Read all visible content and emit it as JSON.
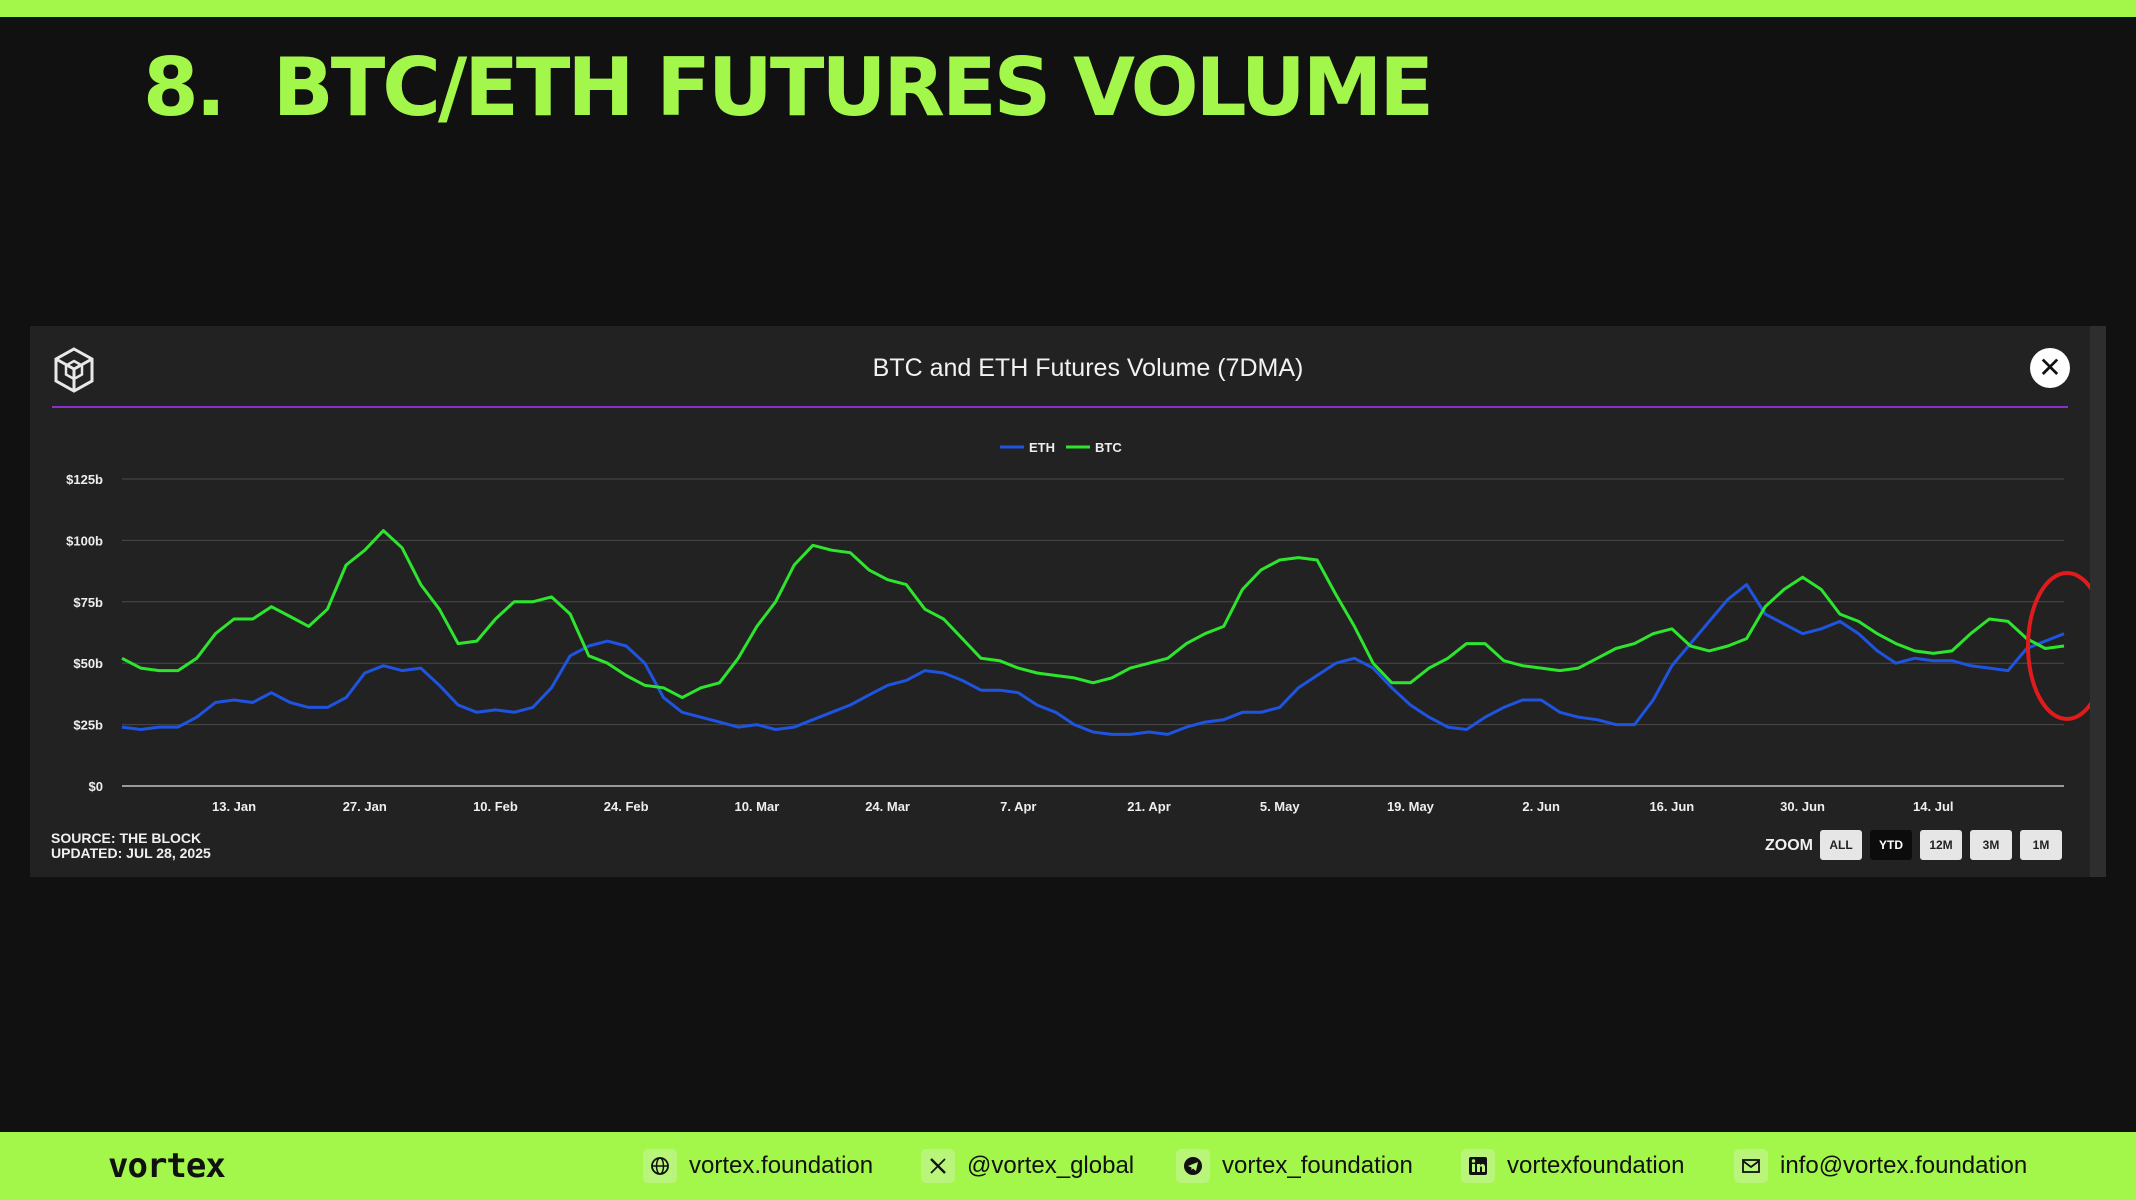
{
  "slide": {
    "title": "8.  BTC/ETH FUTURES VOLUME"
  },
  "panel": {
    "close_label": "✕",
    "source_line1": "SOURCE: THE BLOCK",
    "source_line2": "UPDATED: JUL 28, 2025",
    "zoom_label": "ZOOM",
    "zoom_buttons": [
      "ALL",
      "YTD",
      "12M",
      "3M",
      "1M"
    ],
    "zoom_active": "YTD"
  },
  "footer": {
    "brand": "vortex",
    "links": [
      {
        "icon": "globe-icon",
        "text": "vortex.foundation"
      },
      {
        "icon": "x-logo-icon",
        "text": "@vortex_global"
      },
      {
        "icon": "telegram-icon",
        "text": "vortex_foundation"
      },
      {
        "icon": "linkedin-icon",
        "text": "vortexfoundation"
      },
      {
        "icon": "mail-icon",
        "text": "info@vortex.foundation"
      }
    ]
  },
  "colors": {
    "accent": "#a3f64a",
    "eth": "#1f54e0",
    "btc": "#2ee52e",
    "highlight": "#e01b1b",
    "rule": "#8c2ec8"
  },
  "chart_data": {
    "type": "line",
    "title": "BTC and ETH Futures Volume (7DMA)",
    "xlabel": "",
    "ylabel": "",
    "ylim": [
      0,
      125
    ],
    "yticks": [
      0,
      25,
      50,
      75,
      100,
      125
    ],
    "ytick_labels": [
      "$0",
      "$25b",
      "$50b",
      "$75b",
      "$100b",
      "$125b"
    ],
    "x_start": "2025-01-01",
    "x_end": "2025-07-28",
    "xticks": [
      "2025-01-13",
      "2025-01-27",
      "2025-02-10",
      "2025-02-24",
      "2025-03-10",
      "2025-03-24",
      "2025-04-07",
      "2025-04-21",
      "2025-05-05",
      "2025-05-19",
      "2025-06-02",
      "2025-06-16",
      "2025-06-30",
      "2025-07-14"
    ],
    "xtick_labels": [
      "13. Jan",
      "27. Jan",
      "10. Feb",
      "24. Feb",
      "10. Mar",
      "24. Mar",
      "7. Apr",
      "21. Apr",
      "5. May",
      "19. May",
      "2. Jun",
      "16. Jun",
      "30. Jun",
      "14. Jul"
    ],
    "grid": true,
    "legend_position": "top-center",
    "series": [
      {
        "name": "ETH",
        "color": "#1f54e0",
        "points": [
          [
            "2025-01-01",
            24
          ],
          [
            "2025-01-03",
            23
          ],
          [
            "2025-01-05",
            24
          ],
          [
            "2025-01-07",
            24
          ],
          [
            "2025-01-09",
            28
          ],
          [
            "2025-01-11",
            34
          ],
          [
            "2025-01-13",
            35
          ],
          [
            "2025-01-15",
            34
          ],
          [
            "2025-01-17",
            38
          ],
          [
            "2025-01-19",
            34
          ],
          [
            "2025-01-21",
            32
          ],
          [
            "2025-01-23",
            32
          ],
          [
            "2025-01-25",
            36
          ],
          [
            "2025-01-27",
            46
          ],
          [
            "2025-01-29",
            49
          ],
          [
            "2025-01-31",
            47
          ],
          [
            "2025-02-02",
            48
          ],
          [
            "2025-02-04",
            41
          ],
          [
            "2025-02-06",
            33
          ],
          [
            "2025-02-08",
            30
          ],
          [
            "2025-02-10",
            31
          ],
          [
            "2025-02-12",
            30
          ],
          [
            "2025-02-14",
            32
          ],
          [
            "2025-02-16",
            40
          ],
          [
            "2025-02-18",
            53
          ],
          [
            "2025-02-20",
            57
          ],
          [
            "2025-02-22",
            59
          ],
          [
            "2025-02-24",
            57
          ],
          [
            "2025-02-26",
            50
          ],
          [
            "2025-02-28",
            36
          ],
          [
            "2025-03-02",
            30
          ],
          [
            "2025-03-04",
            28
          ],
          [
            "2025-03-06",
            26
          ],
          [
            "2025-03-08",
            24
          ],
          [
            "2025-03-10",
            25
          ],
          [
            "2025-03-12",
            23
          ],
          [
            "2025-03-14",
            24
          ],
          [
            "2025-03-16",
            27
          ],
          [
            "2025-03-18",
            30
          ],
          [
            "2025-03-20",
            33
          ],
          [
            "2025-03-22",
            37
          ],
          [
            "2025-03-24",
            41
          ],
          [
            "2025-03-26",
            43
          ],
          [
            "2025-03-28",
            47
          ],
          [
            "2025-03-30",
            46
          ],
          [
            "2025-04-01",
            43
          ],
          [
            "2025-04-03",
            39
          ],
          [
            "2025-04-05",
            39
          ],
          [
            "2025-04-07",
            38
          ],
          [
            "2025-04-09",
            33
          ],
          [
            "2025-04-11",
            30
          ],
          [
            "2025-04-13",
            25
          ],
          [
            "2025-04-15",
            22
          ],
          [
            "2025-04-17",
            21
          ],
          [
            "2025-04-19",
            21
          ],
          [
            "2025-04-21",
            22
          ],
          [
            "2025-04-23",
            21
          ],
          [
            "2025-04-25",
            24
          ],
          [
            "2025-04-27",
            26
          ],
          [
            "2025-04-29",
            27
          ],
          [
            "2025-05-01",
            30
          ],
          [
            "2025-05-03",
            30
          ],
          [
            "2025-05-05",
            32
          ],
          [
            "2025-05-07",
            40
          ],
          [
            "2025-05-09",
            45
          ],
          [
            "2025-05-11",
            50
          ],
          [
            "2025-05-13",
            52
          ],
          [
            "2025-05-15",
            48
          ],
          [
            "2025-05-17",
            40
          ],
          [
            "2025-05-19",
            33
          ],
          [
            "2025-05-21",
            28
          ],
          [
            "2025-05-23",
            24
          ],
          [
            "2025-05-25",
            23
          ],
          [
            "2025-05-27",
            28
          ],
          [
            "2025-05-29",
            32
          ],
          [
            "2025-05-31",
            35
          ],
          [
            "2025-06-02",
            35
          ],
          [
            "2025-06-04",
            30
          ],
          [
            "2025-06-06",
            28
          ],
          [
            "2025-06-08",
            27
          ],
          [
            "2025-06-10",
            25
          ],
          [
            "2025-06-12",
            25
          ],
          [
            "2025-06-14",
            35
          ],
          [
            "2025-06-16",
            49
          ],
          [
            "2025-06-18",
            58
          ],
          [
            "2025-06-20",
            67
          ],
          [
            "2025-06-22",
            76
          ],
          [
            "2025-06-24",
            82
          ],
          [
            "2025-06-26",
            70
          ],
          [
            "2025-06-28",
            66
          ],
          [
            "2025-06-30",
            62
          ],
          [
            "2025-07-02",
            64
          ],
          [
            "2025-07-04",
            67
          ],
          [
            "2025-07-06",
            62
          ],
          [
            "2025-07-08",
            55
          ],
          [
            "2025-07-10",
            50
          ],
          [
            "2025-07-12",
            52
          ],
          [
            "2025-07-14",
            51
          ],
          [
            "2025-07-16",
            51
          ],
          [
            "2025-07-18",
            49
          ],
          [
            "2025-07-20",
            48
          ],
          [
            "2025-07-22",
            47
          ],
          [
            "2025-07-24",
            56
          ],
          [
            "2025-07-26",
            59
          ],
          [
            "2025-07-28",
            62
          ]
        ]
      },
      {
        "name": "BTC",
        "color": "#2ee52e",
        "points": [
          [
            "2025-01-01",
            52
          ],
          [
            "2025-01-03",
            48
          ],
          [
            "2025-01-05",
            47
          ],
          [
            "2025-01-07",
            47
          ],
          [
            "2025-01-09",
            52
          ],
          [
            "2025-01-11",
            62
          ],
          [
            "2025-01-13",
            68
          ],
          [
            "2025-01-15",
            68
          ],
          [
            "2025-01-17",
            73
          ],
          [
            "2025-01-19",
            69
          ],
          [
            "2025-01-21",
            65
          ],
          [
            "2025-01-23",
            72
          ],
          [
            "2025-01-25",
            90
          ],
          [
            "2025-01-27",
            96
          ],
          [
            "2025-01-29",
            104
          ],
          [
            "2025-01-31",
            97
          ],
          [
            "2025-02-02",
            82
          ],
          [
            "2025-02-04",
            72
          ],
          [
            "2025-02-06",
            58
          ],
          [
            "2025-02-08",
            59
          ],
          [
            "2025-02-10",
            68
          ],
          [
            "2025-02-12",
            75
          ],
          [
            "2025-02-14",
            75
          ],
          [
            "2025-02-16",
            77
          ],
          [
            "2025-02-18",
            70
          ],
          [
            "2025-02-20",
            53
          ],
          [
            "2025-02-22",
            50
          ],
          [
            "2025-02-24",
            45
          ],
          [
            "2025-02-26",
            41
          ],
          [
            "2025-02-28",
            40
          ],
          [
            "2025-03-02",
            36
          ],
          [
            "2025-03-04",
            40
          ],
          [
            "2025-03-06",
            42
          ],
          [
            "2025-03-08",
            52
          ],
          [
            "2025-03-10",
            65
          ],
          [
            "2025-03-12",
            75
          ],
          [
            "2025-03-14",
            90
          ],
          [
            "2025-03-16",
            98
          ],
          [
            "2025-03-18",
            96
          ],
          [
            "2025-03-20",
            95
          ],
          [
            "2025-03-22",
            88
          ],
          [
            "2025-03-24",
            84
          ],
          [
            "2025-03-26",
            82
          ],
          [
            "2025-03-28",
            72
          ],
          [
            "2025-03-30",
            68
          ],
          [
            "2025-04-01",
            60
          ],
          [
            "2025-04-03",
            52
          ],
          [
            "2025-04-05",
            51
          ],
          [
            "2025-04-07",
            48
          ],
          [
            "2025-04-09",
            46
          ],
          [
            "2025-04-11",
            45
          ],
          [
            "2025-04-13",
            44
          ],
          [
            "2025-04-15",
            42
          ],
          [
            "2025-04-17",
            44
          ],
          [
            "2025-04-19",
            48
          ],
          [
            "2025-04-21",
            50
          ],
          [
            "2025-04-23",
            52
          ],
          [
            "2025-04-25",
            58
          ],
          [
            "2025-04-27",
            62
          ],
          [
            "2025-04-29",
            65
          ],
          [
            "2025-05-01",
            80
          ],
          [
            "2025-05-03",
            88
          ],
          [
            "2025-05-05",
            92
          ],
          [
            "2025-05-07",
            93
          ],
          [
            "2025-05-09",
            92
          ],
          [
            "2025-05-11",
            78
          ],
          [
            "2025-05-13",
            65
          ],
          [
            "2025-05-15",
            50
          ],
          [
            "2025-05-17",
            42
          ],
          [
            "2025-05-19",
            42
          ],
          [
            "2025-05-21",
            48
          ],
          [
            "2025-05-23",
            52
          ],
          [
            "2025-05-25",
            58
          ],
          [
            "2025-05-27",
            58
          ],
          [
            "2025-05-29",
            51
          ],
          [
            "2025-05-31",
            49
          ],
          [
            "2025-06-02",
            48
          ],
          [
            "2025-06-04",
            47
          ],
          [
            "2025-06-06",
            48
          ],
          [
            "2025-06-08",
            52
          ],
          [
            "2025-06-10",
            56
          ],
          [
            "2025-06-12",
            58
          ],
          [
            "2025-06-14",
            62
          ],
          [
            "2025-06-16",
            64
          ],
          [
            "2025-06-18",
            57
          ],
          [
            "2025-06-20",
            55
          ],
          [
            "2025-06-22",
            57
          ],
          [
            "2025-06-24",
            60
          ],
          [
            "2025-06-26",
            73
          ],
          [
            "2025-06-28",
            80
          ],
          [
            "2025-06-30",
            85
          ],
          [
            "2025-07-02",
            80
          ],
          [
            "2025-07-04",
            70
          ],
          [
            "2025-07-06",
            67
          ],
          [
            "2025-07-08",
            62
          ],
          [
            "2025-07-10",
            58
          ],
          [
            "2025-07-12",
            55
          ],
          [
            "2025-07-14",
            54
          ],
          [
            "2025-07-16",
            55
          ],
          [
            "2025-07-18",
            62
          ],
          [
            "2025-07-20",
            68
          ],
          [
            "2025-07-22",
            67
          ],
          [
            "2025-07-24",
            60
          ],
          [
            "2025-07-26",
            56
          ],
          [
            "2025-07-28",
            57
          ]
        ]
      }
    ]
  }
}
